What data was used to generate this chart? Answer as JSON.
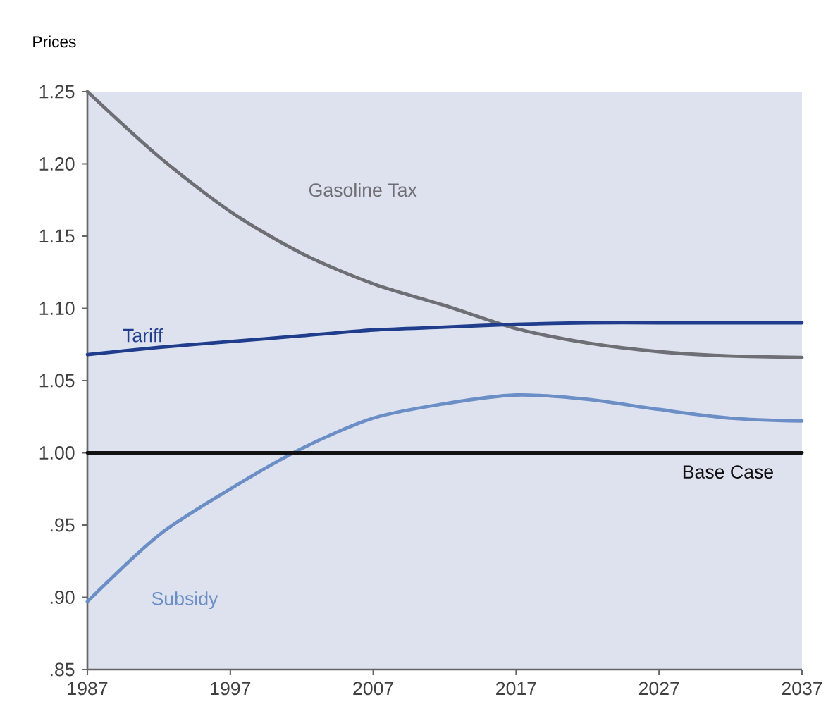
{
  "chart_data": {
    "type": "line",
    "ylabel": "Prices",
    "x": [
      1987,
      1992,
      1997,
      2002,
      2007,
      2012,
      2017,
      2022,
      2027,
      2032,
      2037
    ],
    "xlim": [
      1987,
      2037
    ],
    "xticks": [
      1987,
      1997,
      2007,
      2017,
      2027,
      2037
    ],
    "ylim": [
      0.85,
      1.25
    ],
    "yticks": [
      {
        "value": 0.85,
        "label": ".85"
      },
      {
        "value": 0.9,
        "label": ".90"
      },
      {
        "value": 0.95,
        "label": ".95"
      },
      {
        "value": 1.0,
        "label": "1.00"
      },
      {
        "value": 1.05,
        "label": "1.05"
      },
      {
        "value": 1.1,
        "label": "1.10"
      },
      {
        "value": 1.15,
        "label": "1.15"
      },
      {
        "value": 1.2,
        "label": "1.20"
      },
      {
        "value": 1.25,
        "label": "1.25"
      }
    ],
    "series": [
      {
        "name": "Gasoline Tax",
        "color": "#6e6f74",
        "values": [
          1.25,
          1.205,
          1.167,
          1.138,
          1.117,
          1.102,
          1.086,
          1.076,
          1.07,
          1.067,
          1.066
        ]
      },
      {
        "name": "Tariff",
        "color": "#1f3d8c",
        "values": [
          1.068,
          1.073,
          1.077,
          1.081,
          1.085,
          1.087,
          1.089,
          1.09,
          1.09,
          1.09,
          1.09
        ]
      },
      {
        "name": "Subsidy",
        "color": "#6b8ec6",
        "values": [
          0.897,
          0.943,
          0.975,
          1.003,
          1.024,
          1.034,
          1.04,
          1.037,
          1.03,
          1.024,
          1.022
        ]
      },
      {
        "name": "Base Case",
        "color": "#111111",
        "values": [
          1.0,
          1.0,
          1.0,
          1.0,
          1.0,
          1.0,
          1.0,
          1.0,
          1.0,
          1.0,
          1.0
        ]
      }
    ]
  }
}
